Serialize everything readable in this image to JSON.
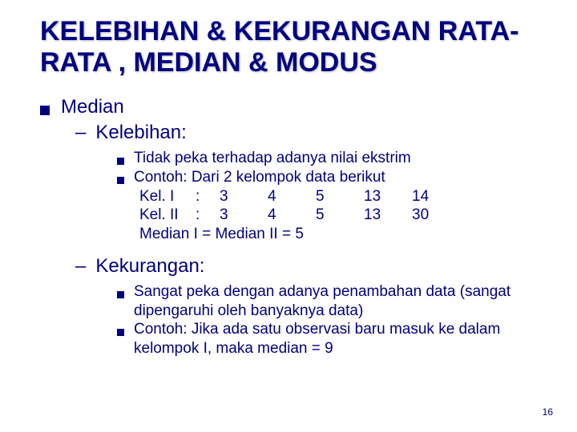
{
  "colors": {
    "text": "#000080",
    "background": "#ffffff"
  },
  "fonts": {
    "family": "Arial",
    "title_size": 34,
    "l1_size": 24,
    "l2_size": 24,
    "l3_size": 19,
    "pagenum_size": 12
  },
  "title": "KELEBIHAN & KEKURANGAN RATA-RATA , MEDIAN & MODUS",
  "median_label": "Median",
  "kelebihan": {
    "heading": "Kelebihan:",
    "p1": "Tidak peka terhadap adanya nilai ekstrim",
    "p2": "Contoh: Dari 2 kelompok data berikut",
    "table": {
      "rows": [
        {
          "label": "Kel. I",
          "colon": ":",
          "v": [
            "3",
            "4",
            "5",
            "13",
            "14"
          ]
        },
        {
          "label": "Kel. II",
          "colon": ":",
          "v": [
            "3",
            "4",
            "5",
            "13",
            "30"
          ]
        }
      ]
    },
    "conclusion": "Median I = Median II = 5"
  },
  "kekurangan": {
    "heading": "Kekurangan:",
    "p1": "Sangat peka dengan adanya penambahan data (sangat dipengaruhi oleh banyaknya data)",
    "p2": "Contoh: Jika ada satu observasi baru masuk ke dalam kelompok I, maka median = 9"
  },
  "page_number": "16"
}
